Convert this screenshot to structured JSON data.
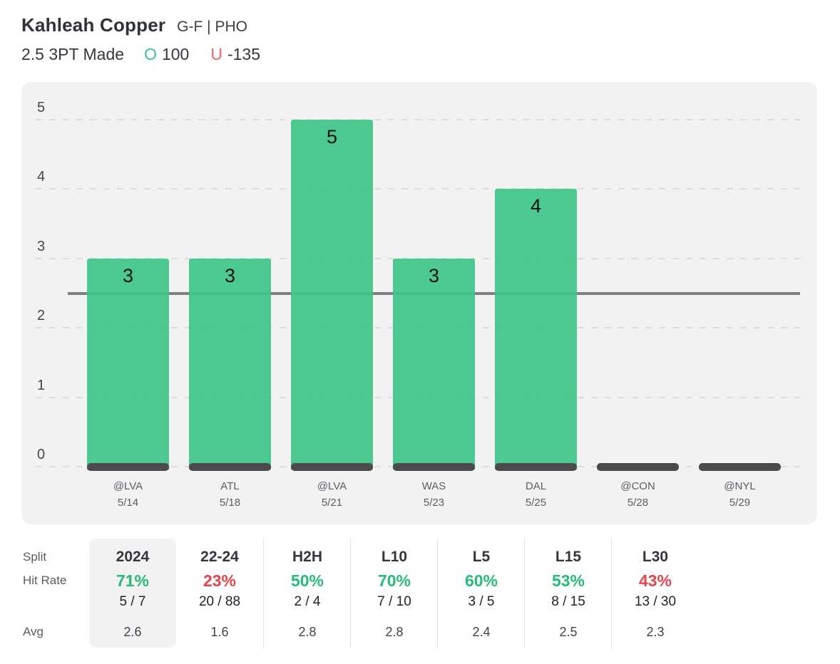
{
  "header": {
    "player_name": "Kahleah Copper",
    "player_meta": "G-F | PHO",
    "prop_label": "2.5 3PT Made",
    "over_symbol": "O",
    "over_odds": "100",
    "under_symbol": "U",
    "under_odds": "-135"
  },
  "colors": {
    "bar_green": "rgba(61,198,136,0.92)",
    "baseline_strip": "#4b4b4e",
    "prop_line": "#7f7f81",
    "over_green": "#3cc48e",
    "under_red": "#f2636b",
    "hit_green": "#27bb79",
    "hit_red": "#e8434d"
  },
  "chart_data": {
    "type": "bar",
    "title": "",
    "categories": [
      "@LVA",
      "ATL",
      "@LVA",
      "WAS",
      "DAL",
      "@CON",
      "@NYL"
    ],
    "dates": [
      "5/14",
      "5/18",
      "5/21",
      "5/23",
      "5/25",
      "5/28",
      "5/29"
    ],
    "values": [
      3,
      3,
      5,
      3,
      4,
      null,
      null
    ],
    "prop_line": 2.5,
    "ylim": [
      0,
      5
    ],
    "yticks": [
      0,
      1,
      2,
      3,
      4,
      5
    ],
    "grid": "horizontal-dashed",
    "legend": "none"
  },
  "stats": {
    "row_labels": {
      "split": "Split",
      "hit_rate": "Hit Rate",
      "avg": "Avg"
    },
    "columns": [
      {
        "label": "2024",
        "hit_pct": "71%",
        "hit_color": "green",
        "fraction": "5 / 7",
        "avg": "2.6",
        "highlighted": true
      },
      {
        "label": "22-24",
        "hit_pct": "23%",
        "hit_color": "red",
        "fraction": "20 / 88",
        "avg": "1.6",
        "highlighted": false
      },
      {
        "label": "H2H",
        "hit_pct": "50%",
        "hit_color": "green",
        "fraction": "2 / 4",
        "avg": "2.8",
        "highlighted": false
      },
      {
        "label": "L10",
        "hit_pct": "70%",
        "hit_color": "green",
        "fraction": "7 / 10",
        "avg": "2.8",
        "highlighted": false
      },
      {
        "label": "L5",
        "hit_pct": "60%",
        "hit_color": "green",
        "fraction": "3 / 5",
        "avg": "2.4",
        "highlighted": false
      },
      {
        "label": "L15",
        "hit_pct": "53%",
        "hit_color": "green",
        "fraction": "8 / 15",
        "avg": "2.5",
        "highlighted": false
      },
      {
        "label": "L30",
        "hit_pct": "43%",
        "hit_color": "red",
        "fraction": "13 / 30",
        "avg": "2.3",
        "highlighted": false
      }
    ]
  }
}
